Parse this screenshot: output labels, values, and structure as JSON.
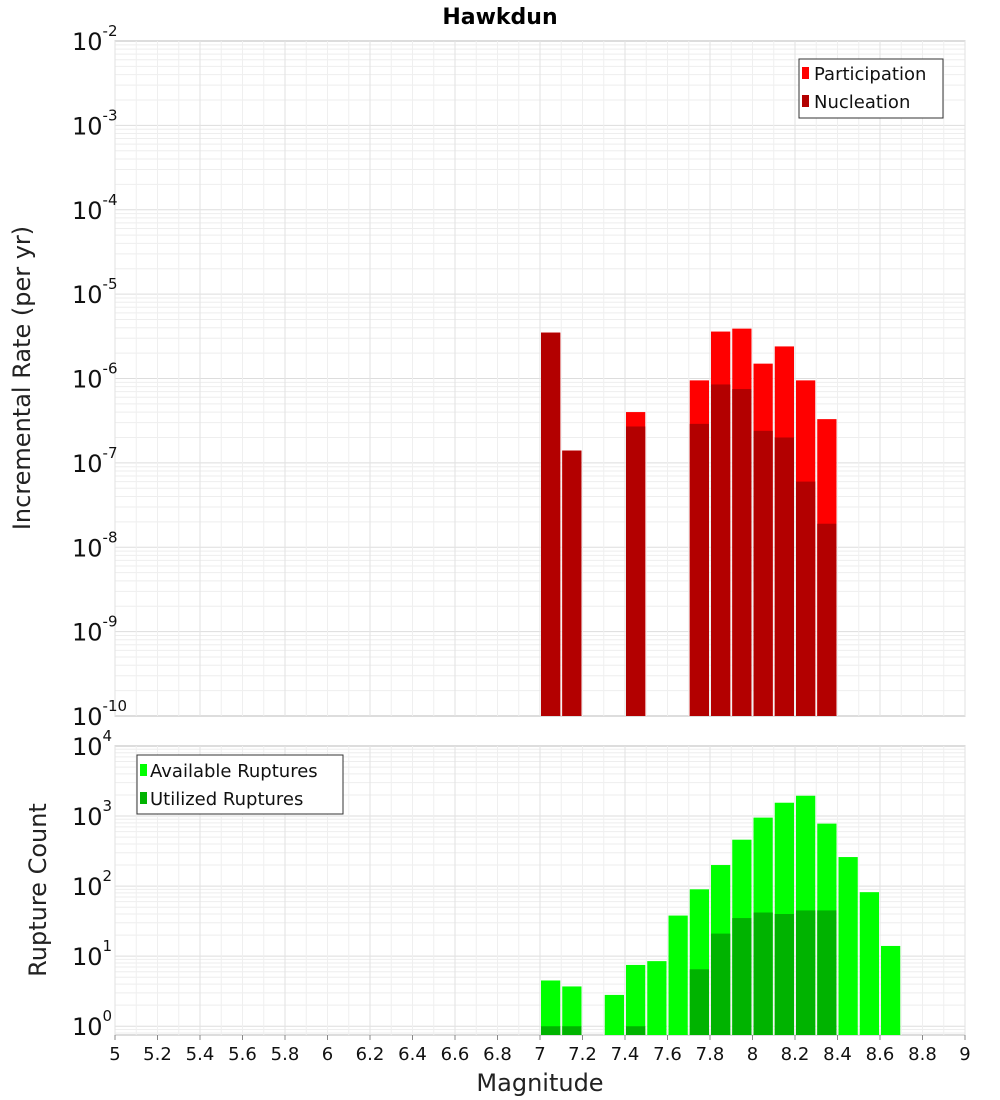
{
  "title": "Hawkdun",
  "chart_data": [
    {
      "type": "bar",
      "ylabel": "Incremental Rate (per yr)",
      "yscale": "log",
      "ylim": [
        1e-10,
        0.01
      ],
      "xlim": [
        5,
        9
      ],
      "grid": true,
      "legend_position": "top-right",
      "legend": [
        "Participation",
        "Nucleation"
      ],
      "colors": {
        "Participation": "#ff0000",
        "Nucleation": "#b30000"
      },
      "y_tick_bases": [
        "10",
        "10",
        "10",
        "10",
        "10",
        "10",
        "10",
        "10",
        "10"
      ],
      "y_tick_exponents": [
        "-10",
        "-9",
        "-8",
        "-7",
        "-6",
        "-5",
        "-4",
        "-3",
        "-2"
      ],
      "x": [
        7.05,
        7.15,
        7.45,
        7.75,
        7.85,
        7.95,
        8.05,
        8.15,
        8.25,
        8.35
      ],
      "series": [
        {
          "name": "Participation",
          "values": [
            3.5e-06,
            1.4e-07,
            4e-07,
            9.5e-07,
            3.6e-06,
            3.9e-06,
            1.5e-06,
            2.4e-06,
            9.5e-07,
            3.3e-07
          ]
        },
        {
          "name": "Nucleation",
          "values": [
            3.5e-06,
            1.4e-07,
            2.7e-07,
            2.9e-07,
            8.5e-07,
            7.5e-07,
            2.4e-07,
            2e-07,
            6e-08,
            1.9e-08
          ]
        }
      ]
    },
    {
      "type": "bar",
      "ylabel": "Rupture Count",
      "xlabel": "Magnitude",
      "yscale": "log",
      "ylim": [
        0.75,
        10000.0
      ],
      "xlim": [
        5,
        9
      ],
      "grid": true,
      "legend_position": "top-left",
      "legend": [
        "Available Ruptures",
        "Utilized Ruptures"
      ],
      "colors": {
        "Available Ruptures": "#00ff00",
        "Utilized Ruptures": "#00b300"
      },
      "y_tick_bases": [
        "10",
        "10",
        "10",
        "10",
        "10"
      ],
      "y_tick_exponents": [
        "0",
        "1",
        "2",
        "3",
        "4"
      ],
      "x_tick_labels": [
        "5",
        "5.2",
        "5.4",
        "5.6",
        "5.8",
        "6",
        "6.2",
        "6.4",
        "6.6",
        "6.8",
        "7",
        "7.2",
        "7.4",
        "7.6",
        "7.8",
        "8",
        "8.2",
        "8.4",
        "8.6",
        "8.8",
        "9"
      ],
      "x": [
        7.05,
        7.15,
        7.35,
        7.45,
        7.55,
        7.65,
        7.75,
        7.85,
        7.95,
        8.05,
        8.15,
        8.25,
        8.35,
        8.45,
        8.55,
        8.65
      ],
      "series": [
        {
          "name": "Available Ruptures",
          "values": [
            4.5,
            3.7,
            2.8,
            7.5,
            8.5,
            38,
            90,
            200,
            460,
            950,
            1550,
            1950,
            780,
            260,
            82,
            14
          ]
        },
        {
          "name": "Utilized Ruptures",
          "values": [
            1,
            1,
            0,
            1,
            0,
            0,
            6.5,
            21,
            35,
            42,
            40,
            45,
            45,
            0,
            0,
            0
          ]
        }
      ]
    }
  ]
}
